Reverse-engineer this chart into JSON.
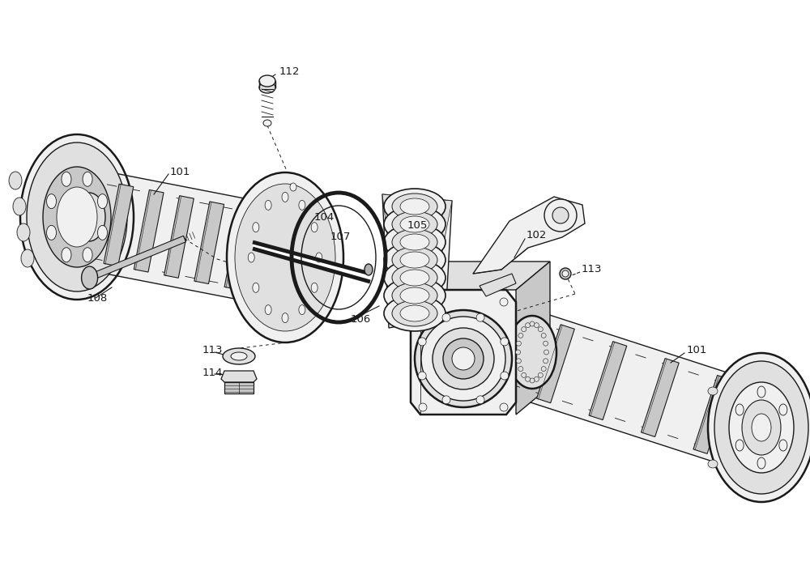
{
  "bg_color": "#ffffff",
  "lc": "#1a1a1a",
  "fig_w": 10.0,
  "fig_h": 7.04,
  "dpi": 100,
  "lw": 1.0,
  "lw_thick": 1.8,
  "lw_thin": 0.6,
  "fc_light": "#f0f0f0",
  "fc_mid": "#e0e0e0",
  "fc_dark": "#c8c8c8",
  "fc_darker": "#b0b0b0"
}
